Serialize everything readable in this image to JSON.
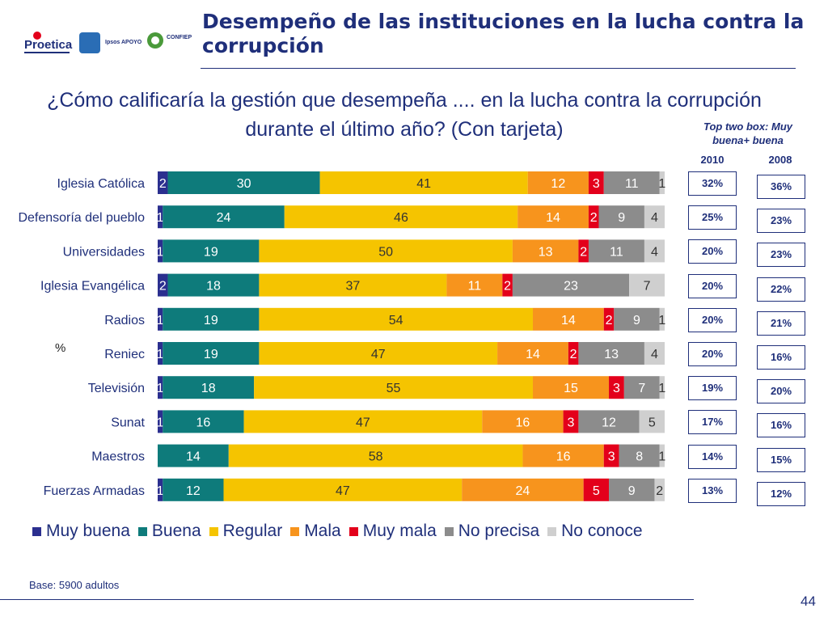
{
  "header": {
    "title": "Desempeño de las instituciones en la lucha contra la corrupción",
    "logos": [
      {
        "name": "Proetica",
        "text": "Proetica"
      },
      {
        "name": "Ipsos APOYO",
        "text": "Ipsos APOYO"
      },
      {
        "name": "CONFIEP",
        "text": "CONFIEP"
      }
    ]
  },
  "question": "¿Cómo calificaría la gestión que desempeña .... en la lucha contra la corrupción durante el último año? (Con tarjeta)",
  "percent_label": "%",
  "top_two_box": {
    "header": "Top two box: Muy buena+ buena",
    "year_2010": "2010",
    "year_2008": "2008",
    "values_2010": [
      "32%",
      "25%",
      "20%",
      "20%",
      "20%",
      "20%",
      "19%",
      "17%",
      "14%",
      "13%"
    ],
    "values_2008": [
      "36%",
      "23%",
      "23%",
      "22%",
      "21%",
      "16%",
      "20%",
      "16%",
      "15%",
      "12%"
    ]
  },
  "chart_data": {
    "type": "bar",
    "stacked": true,
    "orientation": "horizontal",
    "categories": [
      "Iglesia Católica",
      "Defensoría del pueblo",
      "Universidades",
      "Iglesia Evangélica",
      "Radios",
      "Reniec",
      "Televisión",
      "Sunat",
      "Maestros",
      "Fuerzas Armadas"
    ],
    "series": [
      {
        "name": "Muy buena",
        "color": "#2b2f8f",
        "values": [
          2,
          1,
          1,
          2,
          1,
          1,
          1,
          1,
          0,
          1
        ]
      },
      {
        "name": "Buena",
        "color": "#0e7b7b",
        "values": [
          30,
          24,
          19,
          18,
          19,
          19,
          18,
          16,
          14,
          12
        ]
      },
      {
        "name": "Regular",
        "color": "#f5c400",
        "values": [
          41,
          46,
          50,
          37,
          54,
          47,
          55,
          47,
          58,
          47
        ]
      },
      {
        "name": "Mala",
        "color": "#f7941d",
        "values": [
          12,
          14,
          13,
          11,
          14,
          14,
          15,
          16,
          16,
          24
        ]
      },
      {
        "name": "Muy mala",
        "color": "#e3001b",
        "values": [
          3,
          2,
          2,
          2,
          2,
          2,
          3,
          3,
          3,
          5
        ]
      },
      {
        "name": "No precisa",
        "color": "#8c8c8c",
        "values": [
          11,
          9,
          11,
          23,
          9,
          13,
          7,
          12,
          8,
          9
        ]
      },
      {
        "name": "No conoce",
        "color": "#cfcfcf",
        "values": [
          1,
          4,
          4,
          7,
          1,
          4,
          1,
          5,
          1,
          2
        ]
      }
    ],
    "legend_position": "bottom"
  },
  "footer": {
    "base": "Base: 5900 adultos",
    "page": "44"
  }
}
